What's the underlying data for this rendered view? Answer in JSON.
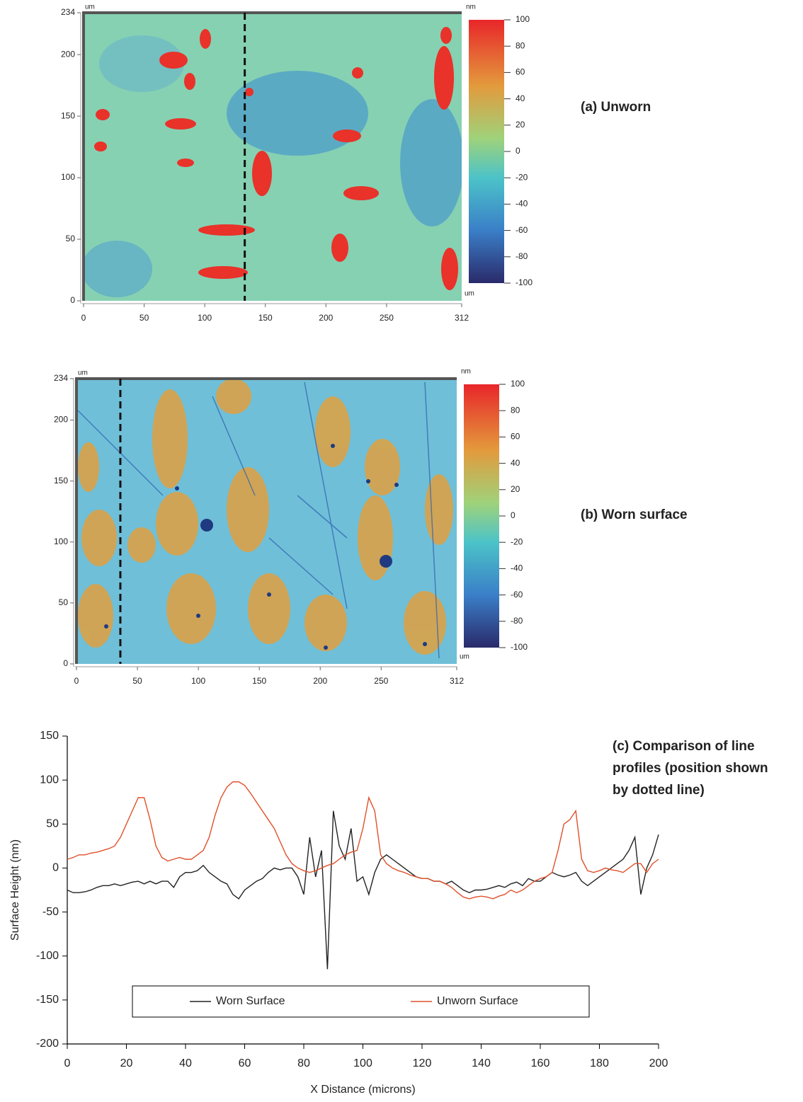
{
  "chart_data": [
    {
      "type": "heatmap",
      "title": "(a) Unworn",
      "x_unit": "um",
      "y_unit": "um",
      "colorbar_unit": "nm",
      "xlim": [
        0,
        312
      ],
      "xticks": [
        0,
        50,
        100,
        150,
        200,
        250,
        312
      ],
      "ylim": [
        0,
        234
      ],
      "yticks": [
        0,
        50,
        100,
        150,
        200,
        234
      ],
      "clim": [
        -100,
        100
      ],
      "cticks": [
        100,
        80,
        60,
        40,
        20,
        0,
        -20,
        -40,
        -60,
        -80,
        -100
      ],
      "profile_x": 133
    },
    {
      "type": "heatmap",
      "title": "(b) Worn surface",
      "x_unit": "um",
      "y_unit": "um",
      "colorbar_unit": "nm",
      "xlim": [
        0,
        312
      ],
      "xticks": [
        0,
        50,
        100,
        150,
        200,
        250,
        312
      ],
      "ylim": [
        0,
        234
      ],
      "yticks": [
        0,
        50,
        100,
        150,
        200,
        234
      ],
      "clim": [
        -100,
        100
      ],
      "cticks": [
        100,
        80,
        60,
        40,
        20,
        0,
        -20,
        -40,
        -60,
        -80,
        -100
      ],
      "profile_x": 36
    },
    {
      "type": "line",
      "title": [
        "(c) Comparison of line",
        "profiles (position shown",
        "by dotted line)"
      ],
      "xlabel": "X Distance (microns)",
      "ylabel": "Surface Height (nm)",
      "xlim": [
        0,
        200
      ],
      "xticks": [
        0,
        20,
        40,
        60,
        80,
        100,
        120,
        140,
        160,
        180,
        200
      ],
      "ylim": [
        -200,
        150
      ],
      "yticks": [
        -200,
        -150,
        -100,
        -50,
        0,
        50,
        100,
        150
      ],
      "legend": "bottom",
      "x": [
        0,
        2,
        4,
        6,
        8,
        10,
        12,
        14,
        16,
        18,
        20,
        22,
        24,
        26,
        28,
        30,
        32,
        34,
        36,
        38,
        40,
        42,
        44,
        46,
        48,
        50,
        52,
        54,
        56,
        58,
        60,
        62,
        64,
        66,
        68,
        70,
        72,
        74,
        76,
        78,
        80,
        82,
        84,
        86,
        88,
        90,
        92,
        94,
        96,
        98,
        100,
        102,
        104,
        106,
        108,
        110,
        112,
        114,
        116,
        118,
        120,
        122,
        124,
        126,
        128,
        130,
        132,
        134,
        136,
        138,
        140,
        142,
        144,
        146,
        148,
        150,
        152,
        154,
        156,
        158,
        160,
        162,
        164,
        166,
        168,
        170,
        172,
        174,
        176,
        178,
        180,
        182,
        184,
        186,
        188,
        190,
        192,
        194,
        196,
        198,
        200
      ],
      "series": [
        {
          "name": "Worn Surface",
          "color": "#222222",
          "values": [
            -25,
            -28,
            -28,
            -27,
            -25,
            -22,
            -20,
            -20,
            -18,
            -20,
            -18,
            -16,
            -15,
            -18,
            -15,
            -18,
            -15,
            -15,
            -22,
            -10,
            -5,
            -5,
            -3,
            3,
            -5,
            -10,
            -15,
            -18,
            -30,
            -35,
            -25,
            -20,
            -15,
            -12,
            -5,
            0,
            -2,
            0,
            0,
            -10,
            -30,
            35,
            -10,
            20,
            -115,
            65,
            25,
            10,
            45,
            -15,
            -10,
            -30,
            -5,
            10,
            15,
            10,
            5,
            0,
            -5,
            -10,
            -12,
            -12,
            -15,
            -15,
            -18,
            -15,
            -20,
            -25,
            -28,
            -25,
            -25,
            -24,
            -22,
            -20,
            -22,
            -18,
            -16,
            -20,
            -12,
            -15,
            -15,
            -10,
            -5,
            -8,
            -10,
            -8,
            -5,
            -15,
            -20,
            -15,
            -10,
            -5,
            0,
            5,
            10,
            20,
            35,
            -30,
            0,
            15,
            38
          ]
        },
        {
          "name": "Unworn Surface",
          "color": "#e0502a",
          "values": [
            10,
            12,
            15,
            15,
            17,
            18,
            20,
            22,
            25,
            35,
            50,
            65,
            80,
            80,
            55,
            25,
            12,
            8,
            10,
            12,
            10,
            10,
            15,
            20,
            35,
            60,
            80,
            92,
            98,
            98,
            94,
            85,
            75,
            65,
            55,
            45,
            30,
            15,
            5,
            0,
            -3,
            -5,
            -3,
            0,
            3,
            5,
            10,
            15,
            18,
            20,
            45,
            80,
            65,
            15,
            5,
            0,
            -3,
            -5,
            -8,
            -10,
            -12,
            -12,
            -15,
            -15,
            -18,
            -22,
            -28,
            -33,
            -35,
            -33,
            -32,
            -33,
            -35,
            -32,
            -30,
            -25,
            -28,
            -25,
            -20,
            -15,
            -12,
            -10,
            -5,
            20,
            50,
            55,
            65,
            10,
            -3,
            -5,
            -3,
            0,
            -2,
            -3,
            -5,
            0,
            5,
            5,
            -5,
            5,
            10
          ]
        }
      ]
    }
  ]
}
